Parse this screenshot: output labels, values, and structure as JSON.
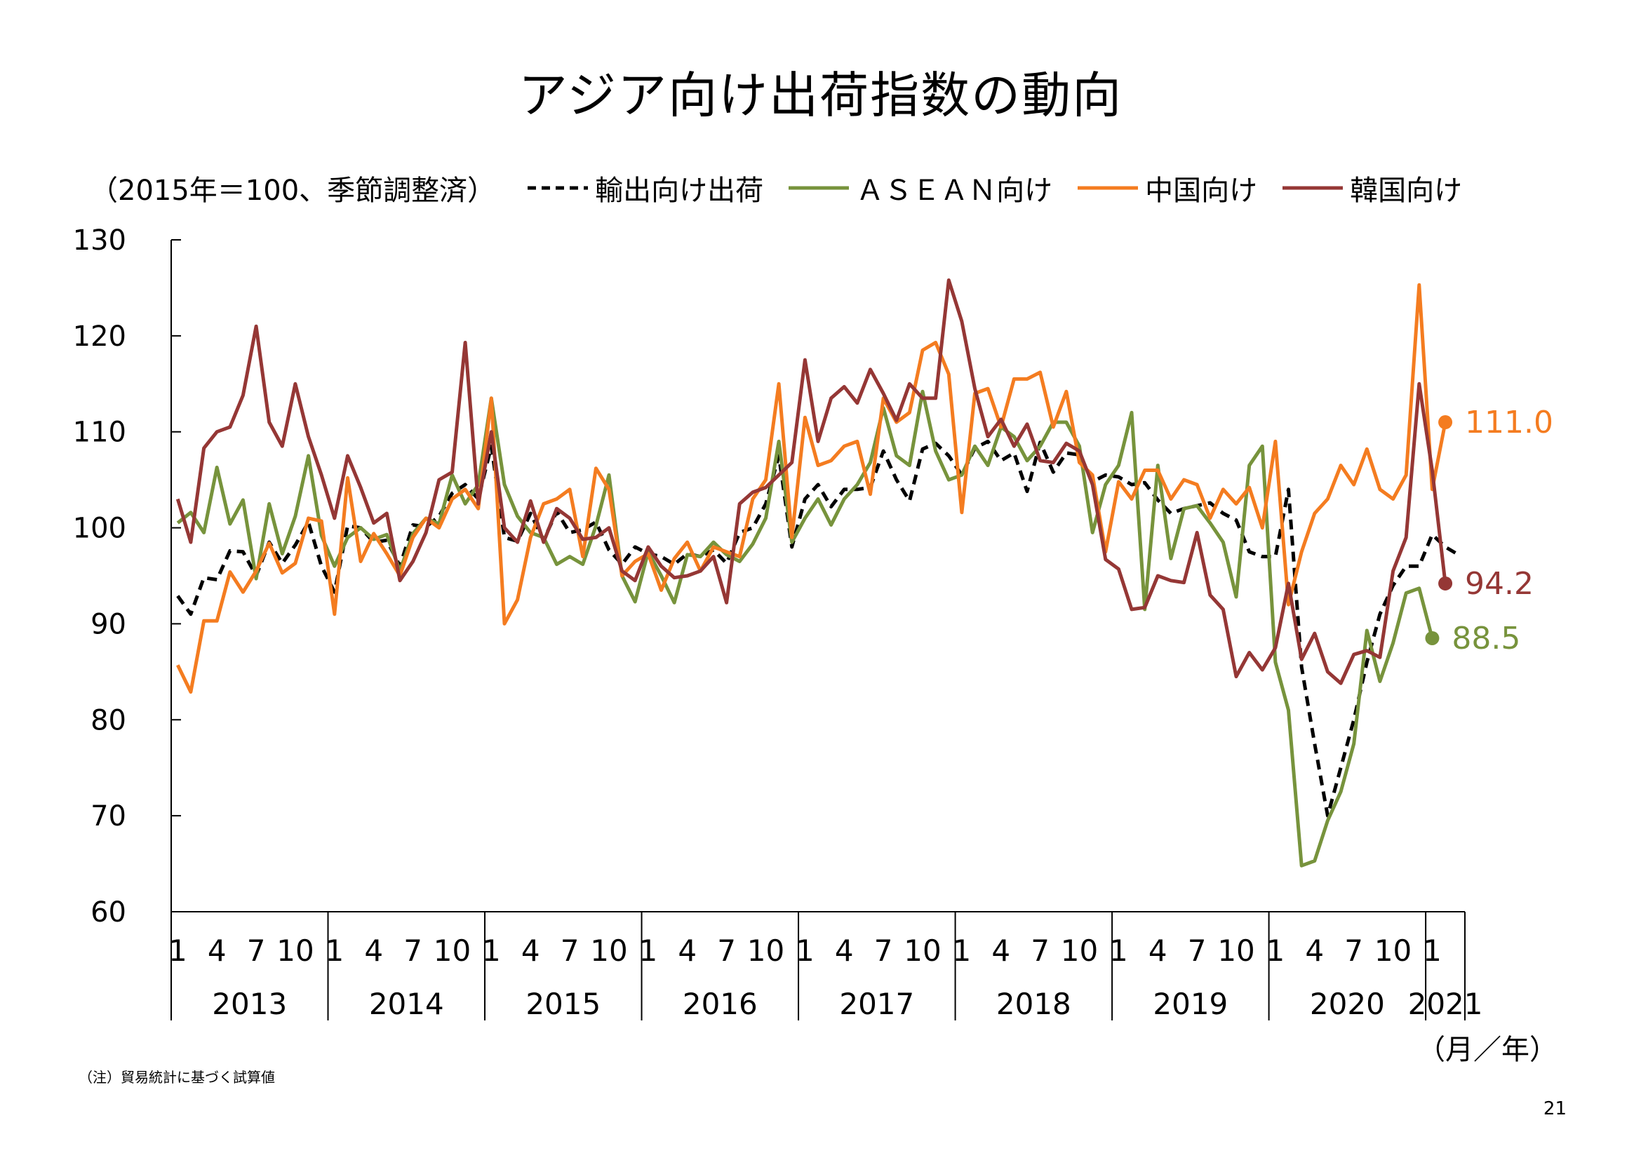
{
  "title": "アジア向け出荷指数の動向",
  "unit_note": "（2015年＝100、季節調整済）",
  "x_unit_label": "（月／年）",
  "footnote": "（注）貿易統計に基づく試算値",
  "page_number": "21",
  "chart_data": {
    "type": "line",
    "ylim": [
      60,
      130
    ],
    "yticks": [
      60,
      70,
      80,
      90,
      100,
      110,
      120,
      130
    ],
    "x_start": "2013-01",
    "month_tick_labels": [
      "1",
      "4",
      "7",
      "10"
    ],
    "years": [
      "2013",
      "2014",
      "2015",
      "2016",
      "2017",
      "2018",
      "2019",
      "2020",
      "2021"
    ],
    "legend_position": "top",
    "grid": false,
    "series": [
      {
        "name": "輸出向け出荷",
        "color": "#000000",
        "dash": "dashed",
        "values": [
          92.9,
          91.0,
          94.8,
          94.6,
          97.6,
          97.5,
          95.0,
          98.5,
          96.3,
          98.2,
          100.6,
          96.0,
          93.3,
          100.2,
          100.0,
          98.5,
          98.7,
          96.0,
          100.3,
          100.1,
          101.2,
          103.6,
          104.5,
          103.0,
          108.5,
          99.0,
          98.6,
          101.5,
          98.7,
          101.7,
          99.5,
          99.8,
          100.6,
          97.7,
          96.2,
          98.0,
          97.3,
          97.0,
          96.2,
          97.3,
          97.0,
          97.7,
          96.3,
          99.5,
          100.0,
          102.5,
          107.5,
          98.0,
          103.0,
          104.5,
          102.2,
          104.0,
          104.0,
          104.2,
          108.0,
          105.0,
          102.8,
          108.2,
          108.8,
          107.5,
          105.5,
          108.3,
          109.0,
          107.0,
          107.8,
          103.8,
          108.9,
          105.8,
          107.8,
          107.6,
          104.8,
          105.5,
          105.3,
          104.5,
          104.7,
          102.9,
          101.5,
          102.0,
          102.3,
          102.6,
          101.5,
          100.8,
          97.5,
          97.0,
          97.0,
          104.0,
          85.5,
          77.5,
          70.0,
          75.0,
          80.0,
          86.0,
          91.0,
          94.0,
          96.0,
          96.0,
          99.3,
          98.0,
          97.2
        ]
      },
      {
        "name": "ＡＳＥＡＮ向け",
        "color": "#77933C",
        "dash": "solid",
        "values": [
          100.5,
          101.6,
          99.5,
          106.3,
          100.4,
          102.9,
          94.7,
          102.5,
          97.3,
          101.2,
          107.5,
          99.2,
          96.0,
          99.0,
          100.0,
          98.8,
          99.3,
          95.5,
          99.4,
          101.0,
          100.4,
          105.5,
          102.5,
          104.5,
          113.5,
          104.5,
          101.2,
          99.5,
          99.0,
          96.2,
          97.0,
          96.2,
          100.2,
          105.5,
          95.0,
          92.3,
          97.5,
          95.0,
          92.2,
          97.2,
          97.0,
          98.5,
          97.2,
          96.5,
          98.3,
          101.0,
          109.0,
          98.5,
          101.0,
          103.0,
          100.3,
          103.0,
          104.5,
          106.8,
          112.5,
          107.5,
          106.5,
          114.2,
          108.0,
          105.0,
          105.5,
          108.5,
          106.5,
          110.5,
          109.5,
          107.0,
          108.5,
          111.0,
          111.0,
          108.5,
          99.5,
          104.5,
          106.5,
          112.0,
          91.5,
          106.5,
          96.8,
          102.0,
          102.3,
          100.5,
          98.5,
          92.8,
          106.5,
          108.5,
          86.0,
          81.0,
          64.8,
          65.3,
          69.5,
          72.5,
          77.5,
          89.3,
          84.0,
          88.0,
          93.2,
          93.7,
          88.5
        ]
      },
      {
        "name": "中国向け",
        "color": "#F47C20",
        "dash": "solid",
        "values": [
          85.7,
          82.9,
          90.3,
          90.3,
          95.4,
          93.3,
          95.5,
          98.4,
          95.3,
          96.3,
          101.0,
          100.7,
          91.0,
          105.2,
          96.5,
          99.4,
          97.3,
          95.0,
          99.0,
          101.0,
          100.0,
          103.0,
          104.0,
          102.0,
          113.5,
          90.0,
          92.5,
          99.0,
          102.5,
          103.0,
          104.0,
          97.0,
          106.2,
          104.0,
          95.0,
          96.5,
          97.3,
          93.5,
          96.8,
          98.5,
          95.5,
          98.0,
          97.5,
          97.0,
          103.0,
          105.0,
          115.0,
          99.0,
          111.5,
          106.5,
          107.0,
          108.5,
          109.0,
          103.5,
          113.5,
          111.0,
          112.0,
          118.5,
          119.3,
          116.0,
          101.6,
          114.0,
          114.5,
          110.5,
          115.5,
          115.5,
          116.2,
          110.5,
          114.2,
          106.8,
          105.5,
          97.5,
          104.8,
          103.0,
          106.0,
          106.0,
          103.0,
          105.0,
          104.5,
          101.0,
          104.0,
          102.5,
          104.2,
          100.0,
          109.0,
          92.0,
          97.5,
          101.5,
          103.0,
          106.5,
          104.5,
          108.2,
          104.0,
          103.0,
          105.5,
          125.3,
          104.0,
          111.0
        ]
      },
      {
        "name": "韓国向け",
        "color": "#953735",
        "dash": "solid",
        "values": [
          103.0,
          98.5,
          108.3,
          110.0,
          110.5,
          113.8,
          121.0,
          111.0,
          108.5,
          115.0,
          109.5,
          105.5,
          101.0,
          107.5,
          104.2,
          100.5,
          101.5,
          94.5,
          96.5,
          99.5,
          105.0,
          105.8,
          119.3,
          102.5,
          110.0,
          100.0,
          98.5,
          102.8,
          98.5,
          102.0,
          101.0,
          98.8,
          99.0,
          100.0,
          95.5,
          94.5,
          98.0,
          96.0,
          94.8,
          95.0,
          95.5,
          97.0,
          92.2,
          102.5,
          103.7,
          104.2,
          105.5,
          106.8,
          117.5,
          109.0,
          113.5,
          114.7,
          113.0,
          116.5,
          114.0,
          111.2,
          115.0,
          113.5,
          113.5,
          125.8,
          121.5,
          114.5,
          109.5,
          111.3,
          108.5,
          110.8,
          107.0,
          106.8,
          108.8,
          108.0,
          104.5,
          96.7,
          95.7,
          91.5,
          91.7,
          95.0,
          94.5,
          94.3,
          99.5,
          93.0,
          91.5,
          84.5,
          87.0,
          85.2,
          87.5,
          94.2,
          86.3,
          89.0,
          85.0,
          83.8,
          86.8,
          87.2,
          86.5,
          95.5,
          99.0,
          115.0,
          106.0,
          94.2
        ]
      }
    ],
    "end_labels": [
      {
        "series": "中国向け",
        "value": 111.0,
        "label": "111.0"
      },
      {
        "series": "韓国向け",
        "value": 94.2,
        "label": "94.2"
      },
      {
        "series": "ＡＳＥＡＮ向け",
        "value": 88.5,
        "label": "88.5"
      }
    ]
  }
}
